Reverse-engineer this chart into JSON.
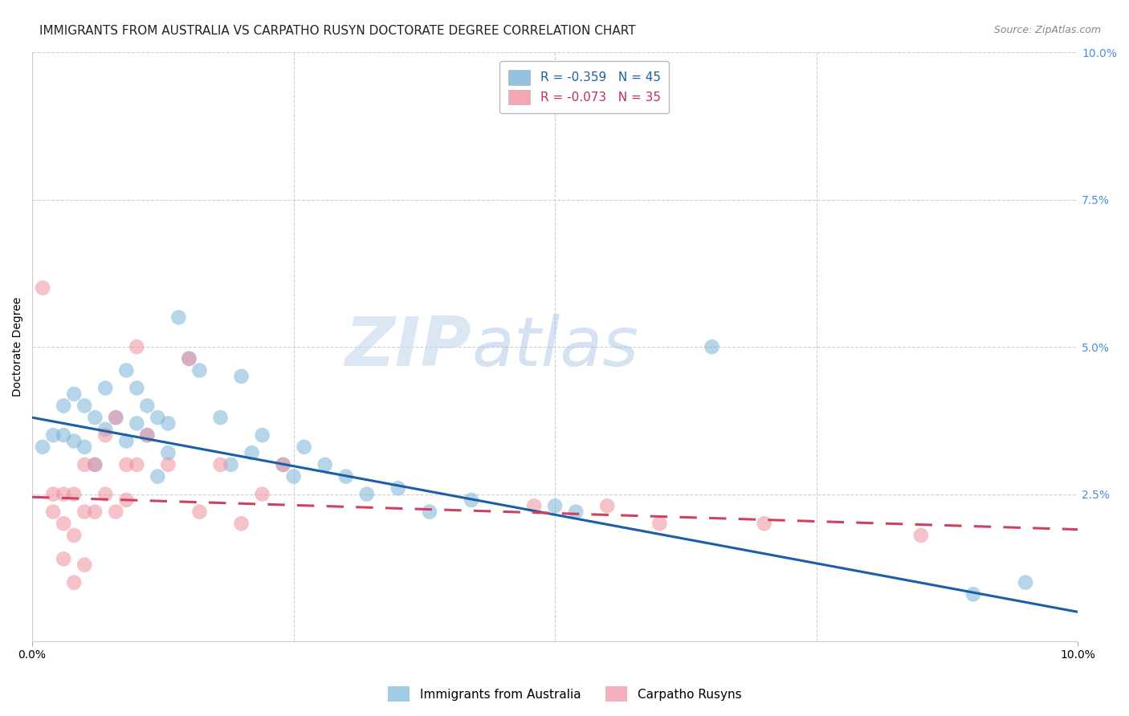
{
  "title": "IMMIGRANTS FROM AUSTRALIA VS CARPATHO RUSYN DOCTORATE DEGREE CORRELATION CHART",
  "source": "Source: ZipAtlas.com",
  "ylabel": "Doctorate Degree",
  "right_yticks": [
    "10.0%",
    "7.5%",
    "5.0%",
    "2.5%"
  ],
  "right_ytick_vals": [
    0.1,
    0.075,
    0.05,
    0.025
  ],
  "legend_entries": [
    {
      "label": "R = -0.359   N = 45",
      "color": "#a8c4e0"
    },
    {
      "label": "R = -0.073   N = 35",
      "color": "#f4a7b9"
    }
  ],
  "watermark_1": "ZIP",
  "watermark_2": "atlas",
  "blue_scatter_x": [
    0.001,
    0.002,
    0.003,
    0.003,
    0.004,
    0.004,
    0.005,
    0.005,
    0.006,
    0.006,
    0.007,
    0.007,
    0.008,
    0.009,
    0.009,
    0.01,
    0.01,
    0.011,
    0.011,
    0.012,
    0.012,
    0.013,
    0.013,
    0.014,
    0.015,
    0.016,
    0.018,
    0.019,
    0.02,
    0.021,
    0.022,
    0.024,
    0.025,
    0.026,
    0.028,
    0.03,
    0.032,
    0.035,
    0.038,
    0.042,
    0.05,
    0.052,
    0.065,
    0.09,
    0.095
  ],
  "blue_scatter_y": [
    0.033,
    0.035,
    0.04,
    0.035,
    0.042,
    0.034,
    0.04,
    0.033,
    0.038,
    0.03,
    0.043,
    0.036,
    0.038,
    0.046,
    0.034,
    0.043,
    0.037,
    0.04,
    0.035,
    0.038,
    0.028,
    0.037,
    0.032,
    0.055,
    0.048,
    0.046,
    0.038,
    0.03,
    0.045,
    0.032,
    0.035,
    0.03,
    0.028,
    0.033,
    0.03,
    0.028,
    0.025,
    0.026,
    0.022,
    0.024,
    0.023,
    0.022,
    0.05,
    0.008,
    0.01
  ],
  "pink_scatter_x": [
    0.001,
    0.002,
    0.002,
    0.003,
    0.003,
    0.003,
    0.004,
    0.004,
    0.004,
    0.005,
    0.005,
    0.005,
    0.006,
    0.006,
    0.007,
    0.007,
    0.008,
    0.008,
    0.009,
    0.009,
    0.01,
    0.01,
    0.011,
    0.013,
    0.015,
    0.016,
    0.018,
    0.02,
    0.022,
    0.024,
    0.048,
    0.055,
    0.06,
    0.07,
    0.085
  ],
  "pink_scatter_y": [
    0.06,
    0.025,
    0.022,
    0.025,
    0.02,
    0.014,
    0.025,
    0.018,
    0.01,
    0.03,
    0.022,
    0.013,
    0.03,
    0.022,
    0.035,
    0.025,
    0.038,
    0.022,
    0.03,
    0.024,
    0.05,
    0.03,
    0.035,
    0.03,
    0.048,
    0.022,
    0.03,
    0.02,
    0.025,
    0.03,
    0.023,
    0.023,
    0.02,
    0.02,
    0.018
  ],
  "blue_line_x": [
    0.0,
    0.1
  ],
  "blue_line_y": [
    0.038,
    0.005
  ],
  "pink_line_x": [
    0.0,
    0.1
  ],
  "pink_line_y": [
    0.0245,
    0.019
  ],
  "xlim": [
    0.0,
    0.1
  ],
  "ylim": [
    0.0,
    0.1
  ],
  "scatter_color_blue": "#7ab4d8",
  "scatter_color_pink": "#f090a0",
  "line_color_blue": "#1a5fa8",
  "line_color_pink": "#d04060",
  "background_color": "#ffffff",
  "grid_color": "#d0d0d0",
  "title_fontsize": 11,
  "axis_label_fontsize": 10,
  "tick_fontsize": 10,
  "legend_fontsize": 11
}
